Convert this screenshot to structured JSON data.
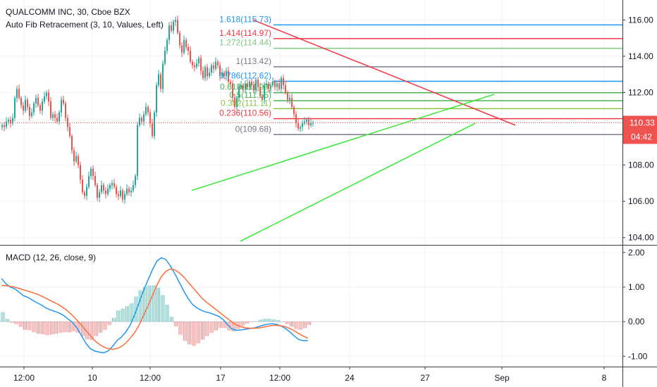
{
  "header": {
    "symbol_line": "QUALCOMM INC, 30, Cboe BZX",
    "indicator_line": "Auto Fib Retracement (3, 10, Values, Left)"
  },
  "macd_panel": {
    "label": "MACD (12, 26, close, 9)"
  },
  "price_scale": {
    "current_price": "110.33",
    "countdown": "04:42"
  },
  "colors": {
    "up": "#26a69a",
    "down": "#ef5350",
    "trend_red": "#f23645",
    "trend_green": "#35e835",
    "macd_line": "#2196f3",
    "signal_line": "#ff6d3a",
    "price_badge": "#ef5350"
  },
  "chart_data": [
    {
      "type": "candlestick",
      "title": "QUALCOMM INC, 30, Cboe BZX",
      "ylim": [
        103.6,
        117.1
      ],
      "y_ticks": [
        "116.00",
        "114.00",
        "112.00",
        "110.00",
        "108.00",
        "106.00",
        "104.00"
      ],
      "x_ticks": [
        "12:00",
        "10",
        "12:00",
        "17",
        "12:00",
        "24",
        "27",
        "Sep",
        "8"
      ],
      "current_price": 110.33,
      "fib_levels": [
        {
          "ratio": "1.618",
          "value": "115.73",
          "label": "1.618(115.73)",
          "color": "#2196f3"
        },
        {
          "ratio": "1.414",
          "value": "114.97",
          "label": "1.414(114.97)",
          "color": "#f23645"
        },
        {
          "ratio": "1.272",
          "value": "114.44",
          "label": "1.272(114.44)",
          "color": "#81c784"
        },
        {
          "ratio": "1",
          "value": "113.42",
          "label": "1(113.42)",
          "color": "#787b86"
        },
        {
          "ratio": "0.786",
          "value": "112.62",
          "label": "0.786(112.62)",
          "color": "#2196f3"
        },
        {
          "ratio": "0.618",
          "value": "111.99",
          "label": "0.618(111.99)",
          "color": "#4caf50"
        },
        {
          "ratio": "0.5",
          "value": "111.55",
          "label": "0.5(111.55)",
          "color": "#4caf50"
        },
        {
          "ratio": "0.382",
          "value": "111.11",
          "label": "0.382(111.11)",
          "color": "#8bc34a"
        },
        {
          "ratio": "0.236",
          "value": "110.56",
          "label": "0.236(110.56)",
          "color": "#f23645"
        },
        {
          "ratio": "0",
          "value": "109.68",
          "label": "0(109.68)",
          "color": "#787b86"
        }
      ],
      "closes": [
        110.2,
        110.1,
        110.4,
        110.5,
        110.3,
        110.6,
        111.7,
        112.2,
        111.7,
        111.3,
        111.0,
        111.6,
        111.2,
        110.7,
        110.9,
        111.4,
        111.7,
        111.3,
        111.0,
        111.5,
        111.8,
        112.0,
        111.5,
        110.6,
        110.8,
        110.6,
        110.4,
        110.9,
        111.6,
        111.4,
        110.6,
        110.1,
        109.6,
        108.8,
        108.2,
        108.5,
        108.0,
        107.2,
        106.5,
        106.3,
        106.8,
        107.4,
        107.8,
        107.4,
        106.9,
        106.2,
        106.5,
        106.9,
        106.6,
        106.4,
        106.7,
        106.9,
        107.0,
        106.8,
        106.4,
        106.3,
        106.6,
        106.1,
        106.4,
        106.7,
        106.5,
        106.6,
        106.9,
        107.4,
        110.2,
        110.6,
        110.4,
        110.8,
        111.2,
        110.9,
        110.3,
        109.6,
        110.9,
        112.4,
        113.0,
        112.2,
        113.6,
        114.3,
        114.9,
        115.7,
        115.4,
        115.9,
        116.0,
        115.3,
        114.6,
        114.2,
        114.9,
        114.5,
        114.3,
        113.7,
        113.5,
        113.4,
        113.6,
        113.9,
        113.2,
        112.8,
        113.4,
        112.9,
        113.1,
        113.5,
        113.3,
        113.7,
        113.5,
        112.9,
        113.1,
        112.9,
        113.2,
        112.6,
        112.5,
        111.7,
        111.2,
        111.7,
        112.3,
        112.4,
        112.2,
        112.5,
        112.3,
        112.6,
        112.4,
        112.1,
        112.7,
        112.3,
        111.8,
        111.6,
        112.4,
        112.5,
        112.2,
        112.4,
        112.6,
        112.3,
        112.5,
        112.2,
        112.8,
        112.4,
        112.0,
        111.6,
        111.7,
        111.2,
        110.8,
        110.3,
        110.0,
        110.1,
        110.3,
        110.4,
        110.5,
        110.2,
        110.3,
        110.33
      ],
      "trendlines": [
        {
          "name": "resistance",
          "from": [
            119,
            116.0
          ],
          "to": [
            243,
            110.2
          ],
          "color": "#f23645"
        },
        {
          "name": "support-1",
          "from": [
            90,
            106.6
          ],
          "to": [
            233,
            111.9
          ],
          "color": "#35e835"
        },
        {
          "name": "support-2",
          "from": [
            113,
            103.8
          ],
          "to": [
            224,
            110.3
          ],
          "color": "#35e835"
        }
      ]
    },
    {
      "type": "macd",
      "title": "MACD (12, 26, close, 9)",
      "ylim": [
        -1.3,
        2.2
      ],
      "y_ticks": [
        "2.00",
        "1.00",
        "0.00",
        "-1.00"
      ],
      "macd": [
        1.25,
        1.1,
        1.0,
        0.95,
        0.85,
        0.75,
        0.7,
        0.62,
        0.55,
        0.48,
        0.4,
        0.34,
        0.3,
        0.25,
        0.18,
        0.08,
        -0.02,
        -0.18,
        -0.4,
        -0.62,
        -0.78,
        -0.85,
        -0.88,
        -0.9,
        -0.85,
        -0.72,
        -0.55,
        -0.45,
        -0.3,
        -0.1,
        0.2,
        0.55,
        0.9,
        1.2,
        1.5,
        1.75,
        1.85,
        1.8,
        1.62,
        1.4,
        1.15,
        0.9,
        0.68,
        0.5,
        0.4,
        0.33,
        0.28,
        0.25,
        0.2,
        0.15,
        0.05,
        -0.1,
        -0.22,
        -0.25,
        -0.24,
        -0.22,
        -0.2,
        -0.18,
        -0.14,
        -0.1,
        -0.07,
        -0.06,
        -0.08,
        -0.13,
        -0.2,
        -0.3,
        -0.42,
        -0.52,
        -0.55,
        -0.55
      ],
      "signal": [
        1.05,
        1.04,
        1.02,
        1.0,
        0.96,
        0.92,
        0.88,
        0.84,
        0.8,
        0.74,
        0.68,
        0.61,
        0.55,
        0.48,
        0.4,
        0.3,
        0.18,
        0.05,
        -0.1,
        -0.25,
        -0.4,
        -0.55,
        -0.65,
        -0.73,
        -0.78,
        -0.8,
        -0.78,
        -0.72,
        -0.62,
        -0.48,
        -0.32,
        -0.1,
        0.18,
        0.45,
        0.75,
        1.05,
        1.3,
        1.45,
        1.52,
        1.5,
        1.42,
        1.3,
        1.15,
        1.0,
        0.85,
        0.7,
        0.58,
        0.48,
        0.38,
        0.28,
        0.18,
        0.08,
        -0.02,
        -0.1,
        -0.15,
        -0.18,
        -0.19,
        -0.19,
        -0.18,
        -0.16,
        -0.13,
        -0.11,
        -0.11,
        -0.12,
        -0.15,
        -0.2,
        -0.27,
        -0.35,
        -0.42,
        -0.48
      ]
    }
  ]
}
